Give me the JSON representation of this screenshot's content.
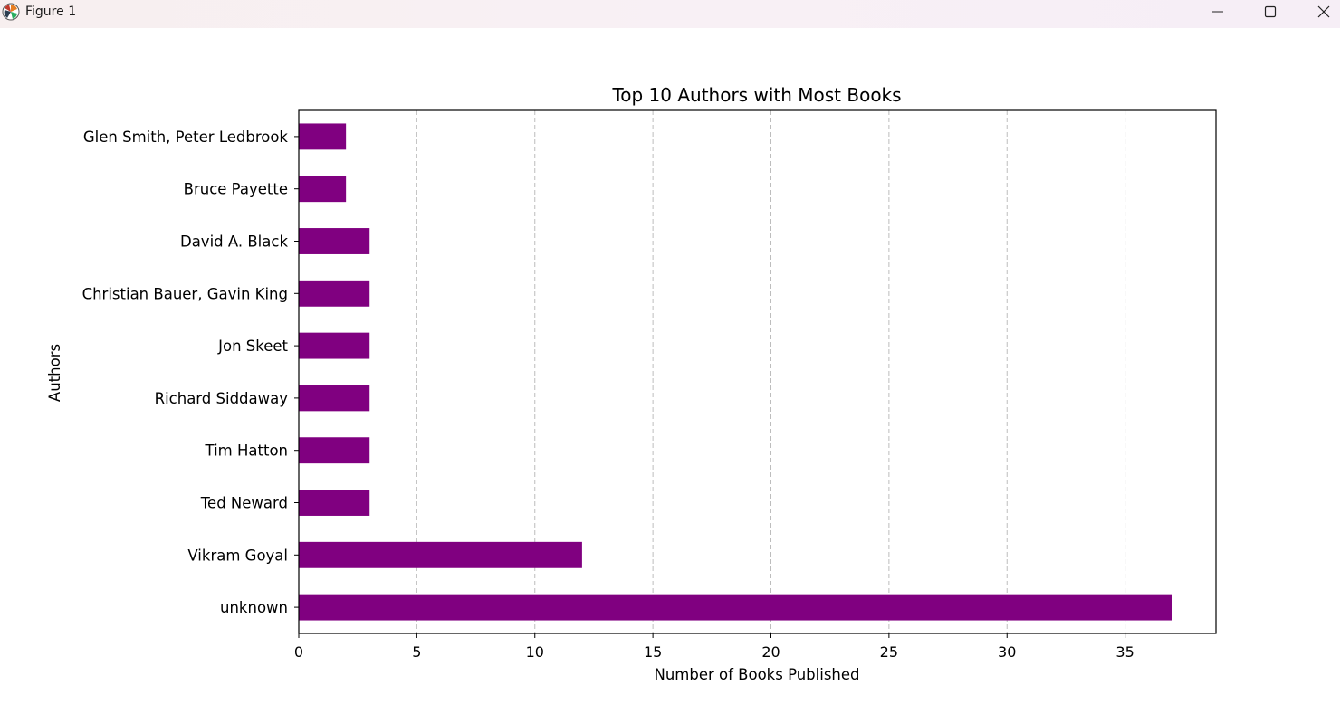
{
  "window": {
    "title": "Figure 1",
    "controls": [
      "minimize-icon",
      "maximize-icon",
      "close-icon"
    ]
  },
  "chart_data": {
    "type": "bar",
    "orientation": "horizontal",
    "title": "Top 10 Authors with Most Books",
    "xlabel": "Number of Books Published",
    "ylabel": "Authors",
    "categories": [
      "unknown",
      "Vikram Goyal",
      "Ted Neward",
      "Tim Hatton",
      "Richard Siddaway",
      "Jon Skeet",
      "Christian Bauer, Gavin King",
      "David A. Black",
      "Bruce Payette",
      "Glen Smith, Peter Ledbrook"
    ],
    "values": [
      37,
      12,
      3,
      3,
      3,
      3,
      3,
      3,
      2,
      2
    ],
    "xlim": [
      0,
      38.85
    ],
    "xticks": [
      0,
      5,
      10,
      15,
      20,
      25,
      30,
      35
    ],
    "grid": "x-dashed",
    "bar_color": "#800080"
  }
}
